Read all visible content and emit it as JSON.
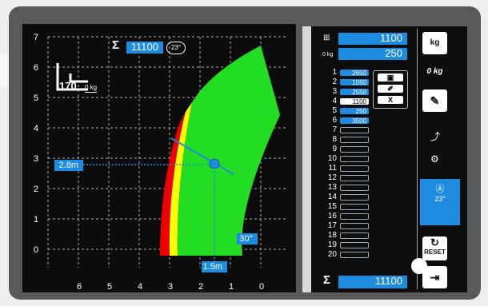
{
  "colors": {
    "accent": "#1d8be0",
    "safe": "#22dd22",
    "warning": "#ffff00",
    "danger": "#ee0000"
  },
  "chart": {
    "y_ticks": [
      "7",
      "6",
      "5",
      "4",
      "3",
      "2",
      "1",
      "0"
    ],
    "x_ticks": [
      "6",
      "5",
      "4",
      "3",
      "2",
      "1",
      "0"
    ],
    "load_value": "170",
    "load_unit": "0 kg",
    "total_value": "11100",
    "badge": "23°",
    "sigma": "Σ",
    "reach_marker": "2.8m",
    "height_marker": "1.5m",
    "angle_marker": "30°"
  },
  "panel": {
    "load_weight": "1100",
    "zero_weight": "250",
    "zero_label": "0 kg",
    "total": "11100",
    "sigma": "Σ",
    "kg_button": "kg",
    "zero_button": "0 kg",
    "reset_label": "RESET",
    "angle_value": "23°",
    "delete_label": "X",
    "rows": [
      {
        "n": "1",
        "v": "2650"
      },
      {
        "n": "2",
        "v": "1050"
      },
      {
        "n": "3",
        "v": "2550"
      },
      {
        "n": "4",
        "v": "1100"
      },
      {
        "n": "5",
        "v": "250"
      },
      {
        "n": "6",
        "v": "3500"
      },
      {
        "n": "7",
        "v": ""
      },
      {
        "n": "8",
        "v": ""
      },
      {
        "n": "9",
        "v": ""
      },
      {
        "n": "10",
        "v": ""
      },
      {
        "n": "11",
        "v": ""
      },
      {
        "n": "12",
        "v": ""
      },
      {
        "n": "13",
        "v": ""
      },
      {
        "n": "14",
        "v": ""
      },
      {
        "n": "15",
        "v": ""
      },
      {
        "n": "16",
        "v": ""
      },
      {
        "n": "17",
        "v": ""
      },
      {
        "n": "18",
        "v": ""
      },
      {
        "n": "19",
        "v": ""
      },
      {
        "n": "20",
        "v": ""
      }
    ]
  }
}
